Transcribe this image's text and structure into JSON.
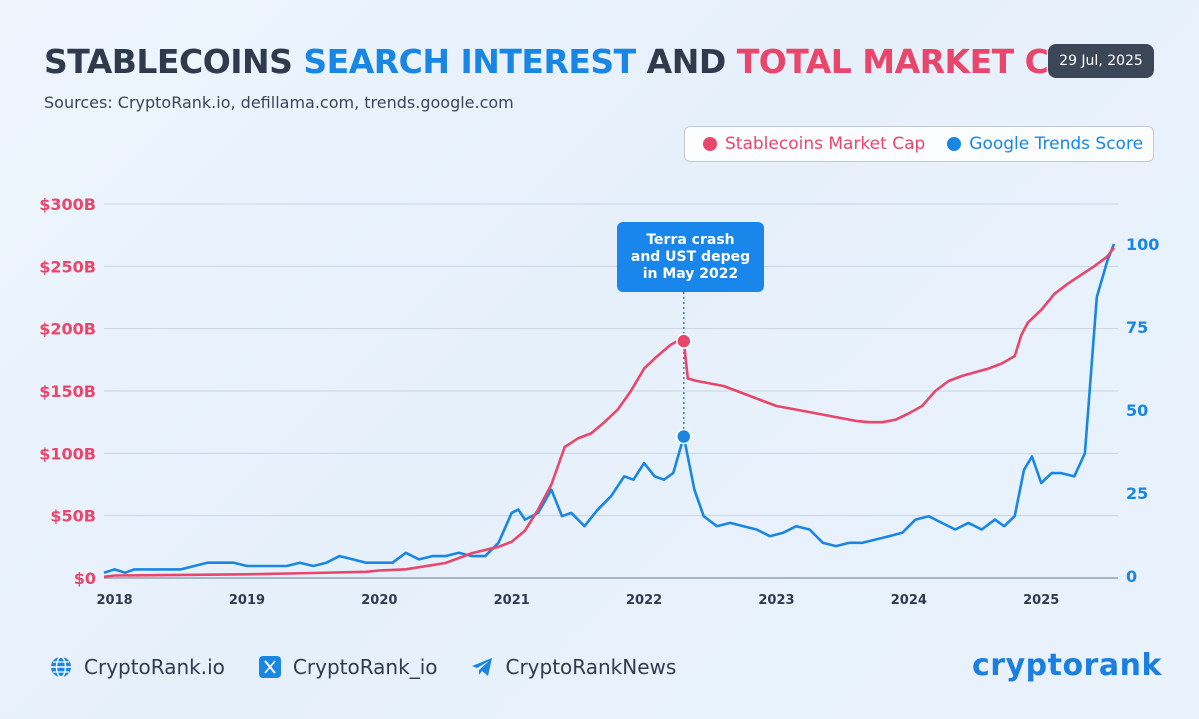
{
  "header": {
    "title_parts": {
      "a": "STABLECOINS ",
      "b": "SEARCH INTEREST",
      "c": " AND ",
      "d": "TOTAL MARKET CAP"
    },
    "subtitle": "Sources: CryptoRank.io, defillama.com, trends.google.com",
    "date": "29 Jul, 2025"
  },
  "colors": {
    "market_cap": "#e8466a",
    "trends": "#1a86e4",
    "title_dark": "#2f3a4d"
  },
  "legend": {
    "market_cap_label": "Stablecoins Market Cap",
    "trends_label": "Google Trends Score"
  },
  "annotation": {
    "lines": [
      "Terra crash",
      "and UST depeg",
      "in May 2022"
    ],
    "x": 2022.3
  },
  "footer": {
    "site": "CryptoRank.io",
    "x_handle": "CryptoRank_io",
    "telegram": "CryptoRankNews",
    "brand": "cryptorank",
    "icons": [
      "globe-icon",
      "x-icon",
      "telegram-icon"
    ]
  },
  "chart_data": {
    "type": "line",
    "grid": true,
    "x_ticks": [
      2018,
      2019,
      2020,
      2021,
      2022,
      2023,
      2024,
      2025
    ],
    "xlim": [
      2017.92,
      2025.58
    ],
    "y_left": {
      "ticks": [
        "$0",
        "$50B",
        "$100B",
        "$150B",
        "$200B",
        "$250B",
        "$300B"
      ],
      "ylim": [
        0,
        300
      ],
      "unit": "B USD"
    },
    "y_right": {
      "ticks": [
        "0",
        "25",
        "50",
        "75",
        "100"
      ],
      "ylim": [
        0,
        113
      ]
    },
    "series": [
      {
        "name": "Stablecoins Market Cap",
        "axis": "left",
        "points": [
          [
            2017.92,
            1
          ],
          [
            2018.0,
            2
          ],
          [
            2018.5,
            2.5
          ],
          [
            2019.0,
            3
          ],
          [
            2019.5,
            4
          ],
          [
            2019.9,
            5
          ],
          [
            2020.0,
            6
          ],
          [
            2020.2,
            7
          ],
          [
            2020.5,
            12
          ],
          [
            2020.7,
            20
          ],
          [
            2020.9,
            25
          ],
          [
            2021.0,
            29
          ],
          [
            2021.1,
            38
          ],
          [
            2021.2,
            55
          ],
          [
            2021.3,
            75
          ],
          [
            2021.4,
            105
          ],
          [
            2021.5,
            112
          ],
          [
            2021.6,
            116
          ],
          [
            2021.7,
            125
          ],
          [
            2021.8,
            135
          ],
          [
            2021.9,
            150
          ],
          [
            2022.0,
            168
          ],
          [
            2022.1,
            178
          ],
          [
            2022.2,
            187
          ],
          [
            2022.25,
            190
          ],
          [
            2022.3,
            190
          ],
          [
            2022.33,
            160
          ],
          [
            2022.4,
            158
          ],
          [
            2022.5,
            156
          ],
          [
            2022.6,
            154
          ],
          [
            2022.7,
            150
          ],
          [
            2022.8,
            146
          ],
          [
            2022.9,
            142
          ],
          [
            2023.0,
            138
          ],
          [
            2023.2,
            134
          ],
          [
            2023.4,
            130
          ],
          [
            2023.6,
            126
          ],
          [
            2023.7,
            125
          ],
          [
            2023.8,
            125
          ],
          [
            2023.9,
            127
          ],
          [
            2024.0,
            132
          ],
          [
            2024.1,
            138
          ],
          [
            2024.2,
            150
          ],
          [
            2024.3,
            158
          ],
          [
            2024.4,
            162
          ],
          [
            2024.5,
            165
          ],
          [
            2024.6,
            168
          ],
          [
            2024.7,
            172
          ],
          [
            2024.8,
            178
          ],
          [
            2024.85,
            195
          ],
          [
            2024.9,
            205
          ],
          [
            2025.0,
            215
          ],
          [
            2025.1,
            228
          ],
          [
            2025.2,
            236
          ],
          [
            2025.3,
            243
          ],
          [
            2025.4,
            250
          ],
          [
            2025.5,
            258
          ],
          [
            2025.55,
            265
          ]
        ]
      },
      {
        "name": "Google Trends Score",
        "axis": "right",
        "points": [
          [
            2017.92,
            1
          ],
          [
            2018.0,
            2
          ],
          [
            2018.08,
            1
          ],
          [
            2018.15,
            2
          ],
          [
            2018.3,
            2
          ],
          [
            2018.5,
            2
          ],
          [
            2018.7,
            4
          ],
          [
            2018.9,
            4
          ],
          [
            2019.0,
            3
          ],
          [
            2019.3,
            3
          ],
          [
            2019.4,
            4
          ],
          [
            2019.5,
            3
          ],
          [
            2019.6,
            4
          ],
          [
            2019.7,
            6
          ],
          [
            2019.8,
            5
          ],
          [
            2019.9,
            4
          ],
          [
            2020.0,
            4
          ],
          [
            2020.1,
            4
          ],
          [
            2020.2,
            7
          ],
          [
            2020.3,
            5
          ],
          [
            2020.4,
            6
          ],
          [
            2020.5,
            6
          ],
          [
            2020.6,
            7
          ],
          [
            2020.7,
            6
          ],
          [
            2020.8,
            6
          ],
          [
            2020.9,
            10
          ],
          [
            2021.0,
            19
          ],
          [
            2021.05,
            20
          ],
          [
            2021.1,
            17
          ],
          [
            2021.2,
            19
          ],
          [
            2021.3,
            26
          ],
          [
            2021.38,
            18
          ],
          [
            2021.45,
            19
          ],
          [
            2021.55,
            15
          ],
          [
            2021.65,
            20
          ],
          [
            2021.75,
            24
          ],
          [
            2021.85,
            30
          ],
          [
            2021.92,
            29
          ],
          [
            2022.0,
            34
          ],
          [
            2022.08,
            30
          ],
          [
            2022.15,
            29
          ],
          [
            2022.22,
            31
          ],
          [
            2022.3,
            42
          ],
          [
            2022.38,
            26
          ],
          [
            2022.45,
            18
          ],
          [
            2022.55,
            15
          ],
          [
            2022.65,
            16
          ],
          [
            2022.75,
            15
          ],
          [
            2022.85,
            14
          ],
          [
            2022.95,
            12
          ],
          [
            2023.05,
            13
          ],
          [
            2023.15,
            15
          ],
          [
            2023.25,
            14
          ],
          [
            2023.35,
            10
          ],
          [
            2023.45,
            9
          ],
          [
            2023.55,
            10
          ],
          [
            2023.65,
            10
          ],
          [
            2023.75,
            11
          ],
          [
            2023.85,
            12
          ],
          [
            2023.95,
            13
          ],
          [
            2024.05,
            17
          ],
          [
            2024.15,
            18
          ],
          [
            2024.25,
            16
          ],
          [
            2024.35,
            14
          ],
          [
            2024.45,
            16
          ],
          [
            2024.55,
            14
          ],
          [
            2024.65,
            17
          ],
          [
            2024.72,
            15
          ],
          [
            2024.8,
            18
          ],
          [
            2024.87,
            32
          ],
          [
            2024.93,
            36
          ],
          [
            2025.0,
            28
          ],
          [
            2025.08,
            31
          ],
          [
            2025.15,
            31
          ],
          [
            2025.25,
            30
          ],
          [
            2025.33,
            37
          ],
          [
            2025.42,
            84
          ],
          [
            2025.5,
            95
          ],
          [
            2025.55,
            100
          ]
        ]
      }
    ]
  }
}
